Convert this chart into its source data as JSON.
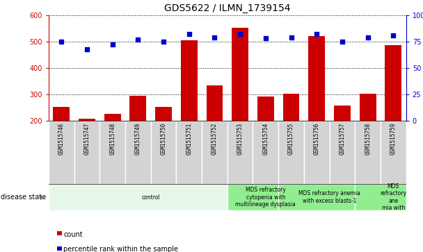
{
  "title": "GDS5622 / ILMN_1739154",
  "samples": [
    "GSM1515746",
    "GSM1515747",
    "GSM1515748",
    "GSM1515749",
    "GSM1515750",
    "GSM1515751",
    "GSM1515752",
    "GSM1515753",
    "GSM1515754",
    "GSM1515755",
    "GSM1515756",
    "GSM1515757",
    "GSM1515758",
    "GSM1515759"
  ],
  "counts": [
    253,
    208,
    228,
    294,
    253,
    504,
    335,
    553,
    293,
    303,
    522,
    258,
    302,
    487
  ],
  "percentiles": [
    75,
    68,
    72,
    77,
    75,
    82,
    79,
    82,
    78,
    79,
    82,
    75,
    79,
    81
  ],
  "ylim_left": [
    200,
    600
  ],
  "ylim_right": [
    0,
    100
  ],
  "yticks_left": [
    200,
    300,
    400,
    500,
    600
  ],
  "yticks_right": [
    0,
    25,
    50,
    75,
    100
  ],
  "bar_color": "#cc0000",
  "dot_color": "#0000cc",
  "disease_groups": [
    {
      "label": "control",
      "start": 0,
      "end": 7,
      "color": "#e8f8e8"
    },
    {
      "label": "MDS refractory\ncytopenia with\nmultilineage dysplasia",
      "start": 7,
      "end": 9,
      "color": "#90ee90"
    },
    {
      "label": "MDS refractory anemia\nwith excess blasts-1",
      "start": 9,
      "end": 12,
      "color": "#90ee90"
    },
    {
      "label": "MDS\nrefractory\nane\nmia with",
      "start": 12,
      "end": 14,
      "color": "#90ee90"
    }
  ],
  "xlabel_disease": "disease state",
  "legend_count": "count",
  "legend_pct": "percentile rank within the sample",
  "title_fontsize": 10,
  "tick_fontsize": 7,
  "sample_fontsize": 5.5,
  "disease_fontsize": 5.5
}
